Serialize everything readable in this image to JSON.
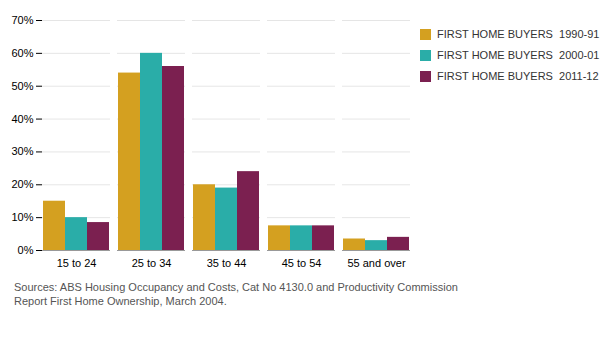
{
  "chart_data": {
    "type": "bar",
    "categories": [
      "15 to 24",
      "25 to 34",
      "35 to 44",
      "45 to 54",
      "55 and over"
    ],
    "series": [
      {
        "name": "FIRST HOME BUYERS  1990-91",
        "color": "#D4A020",
        "values": [
          15,
          54,
          20,
          7.5,
          3.5
        ]
      },
      {
        "name": "FIRST HOME BUYERS  2000-01",
        "color": "#2AADA8",
        "values": [
          10,
          60,
          19,
          7.5,
          3
        ]
      },
      {
        "name": "FIRST HOME BUYERS  2011-12",
        "color": "#7B2050",
        "values": [
          8.5,
          56,
          24,
          7.5,
          4
        ]
      }
    ],
    "ylim": [
      0,
      70
    ],
    "yticks": [
      {
        "value": 0,
        "label": "0%"
      },
      {
        "value": 10,
        "label": "10%"
      },
      {
        "value": 20,
        "label": "20%"
      },
      {
        "value": 30,
        "label": "30%"
      },
      {
        "value": 40,
        "label": "40%"
      },
      {
        "value": 50,
        "label": "50%"
      },
      {
        "value": 60,
        "label": "60%"
      },
      {
        "value": 70,
        "label": "70%"
      }
    ],
    "grid": true,
    "legend": "right",
    "annotations": [
      "Sources: ABS Housing Occupancy and Costs, Cat No 4130.0 and Productivity Commission",
      "Report First Home Ownership, March 2004."
    ]
  }
}
